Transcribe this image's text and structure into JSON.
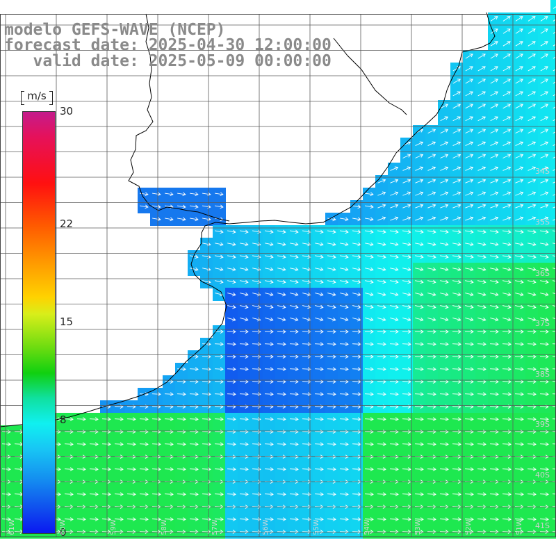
{
  "title": {
    "line1": "modelo GEFS-WAVE (NCEP)",
    "line2": "forecast date: 2025-04-30 12:00:00",
    "line3": "   valid date: 2025-05-09 00:00:00"
  },
  "colorbar": {
    "unit": "m/s",
    "ticks": [
      {
        "label": "30",
        "value": 30
      },
      {
        "label": "22",
        "value": 22
      },
      {
        "label": "15",
        "value": 15
      },
      {
        "label": "8",
        "value": 8
      },
      {
        "label": "0",
        "value": 0
      }
    ],
    "min": 0,
    "max": 30
  },
  "lat_labels": [
    "34S",
    "35S",
    "36S",
    "37S",
    "38S",
    "39S",
    "40S",
    "41S"
  ],
  "lon_labels": [
    "61W",
    "60W",
    "59W",
    "58W",
    "57W",
    "56W",
    "55W",
    "54W",
    "53W",
    "52W",
    "51W"
  ],
  "colors": {
    "land": "#ffffff",
    "coast": "#000000",
    "grid": "#555555",
    "arrow": "#ffffff",
    "title": "#8a8a8a"
  }
}
